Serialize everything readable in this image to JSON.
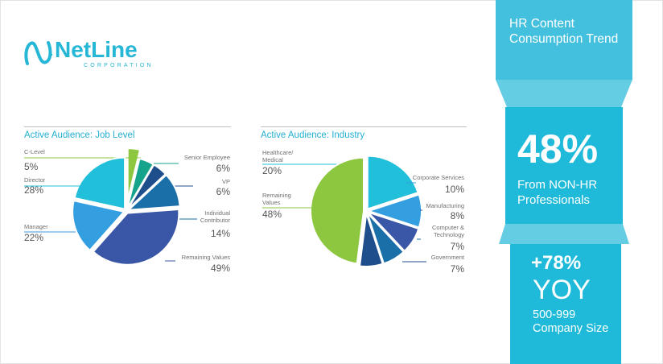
{
  "logo": {
    "name": "NetLine",
    "subtitle": "CORPORATION"
  },
  "chart_data": [
    {
      "type": "pie",
      "title": "Active Audience: Job Level",
      "categories": [
        "C-Level",
        "Senior Employee",
        "VP",
        "Individual Contributor",
        "Remaining Values",
        "Manager",
        "Director"
      ],
      "values": [
        5,
        6,
        6,
        14,
        49,
        22,
        28
      ],
      "value_labels": [
        "5%",
        "6%",
        "6%",
        "14%",
        "49%",
        "22%",
        "28%"
      ],
      "colors": [
        "#8dc63f",
        "#16a38c",
        "#1f4e8c",
        "#1a6fa8",
        "#3a57a7",
        "#339ee0",
        "#21bfd9"
      ]
    },
    {
      "type": "pie",
      "title": "Active Audience: Industry",
      "categories": [
        "Healthcare/ Medical",
        "Corporate Services",
        "Manufacturing",
        "Computer & Technology",
        "Government",
        "Remaining Values"
      ],
      "values": [
        20,
        10,
        8,
        7,
        7,
        48
      ],
      "value_labels": [
        "20%",
        "10%",
        "8%",
        "7%",
        "7%",
        "48%"
      ],
      "colors": [
        "#21bfd9",
        "#339ee0",
        "#3a57a7",
        "#1a6fa8",
        "#1f4e8c",
        "#8dc63f"
      ]
    }
  ],
  "panel": {
    "heading": "HR Content Consumption Trend",
    "stat_value": "48%",
    "stat_text": "From NON-HR Professionals",
    "growth_value": "+78%",
    "growth_unit": "YOY",
    "growth_text": "500-999 Company Size",
    "colors": {
      "top": "#43c0dd",
      "band": "#64cde3",
      "middle": "#1fbad9",
      "bottom": "#1fbad9"
    }
  }
}
